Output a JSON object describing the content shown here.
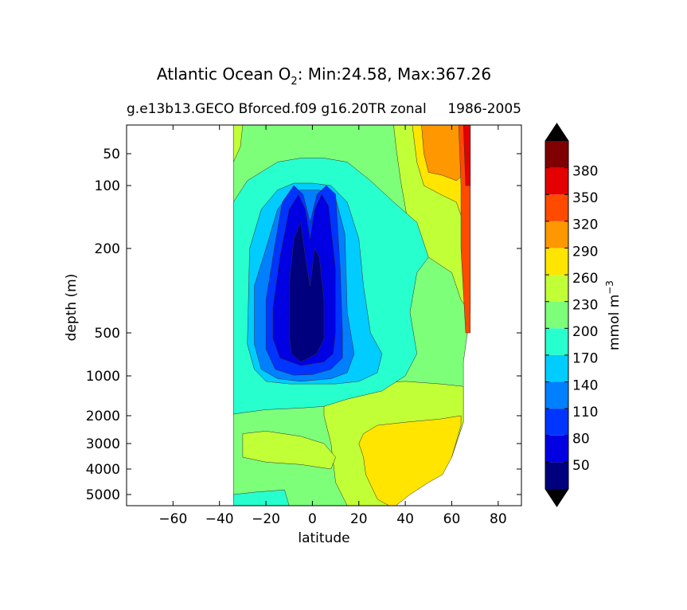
{
  "chart_data": {
    "type": "heatmap",
    "title_text": "Atlantic Ocean O",
    "title_subscript": "2",
    "title_rest": ": Min:24.58, Max:367.26",
    "subtitle_left": "g.e13b13.GECO Bforced.f09 g16.20TR zonal",
    "subtitle_right": "1986-2005",
    "xlabel": "latitude",
    "ylabel": "depth (m)",
    "xlim": [
      -80,
      90
    ],
    "xticks": [
      -60,
      -40,
      -20,
      0,
      20,
      40,
      60,
      80
    ],
    "yticks": [
      50,
      100,
      200,
      500,
      1000,
      2000,
      3000,
      4000,
      5000
    ],
    "yscale": "depth (stretched)",
    "colorbar": {
      "label": "mmol m",
      "label_sup": "−3",
      "levels": [
        20,
        50,
        80,
        110,
        140,
        170,
        200,
        230,
        260,
        290,
        320,
        350,
        380,
        410
      ],
      "tick_labels": [
        "50",
        "80",
        "110",
        "140",
        "170",
        "200",
        "230",
        "260",
        "290",
        "320",
        "350",
        "380"
      ],
      "colors": [
        "#00007f",
        "#0000e3",
        "#0034ff",
        "#0080ff",
        "#00ccff",
        "#28ffce",
        "#7dff7a",
        "#c1ff36",
        "#ffe500",
        "#ff9700",
        "#ff4a00",
        "#e40000",
        "#7f0000"
      ],
      "extend_low_color": "#000000",
      "extend_high_color": "#000000"
    },
    "contour_regions": [
      {
        "level_low": 200,
        "color": "#7dff7a",
        "extent": "domain -34 to 68 latitude, 20 to 5500 m (background)"
      },
      {
        "level_low": 230,
        "color": "#c1ff36",
        "extent": "western boundary strip near -34 latitude, 20-60 m"
      },
      {
        "level_low": 230,
        "color": "#c1ff36",
        "extent": "northern upper ocean 35-68 latitude, 20-400 m"
      },
      {
        "level_low": 260,
        "color": "#ffe500",
        "extent": "upper ocean 43-68 latitude, 20-150 m"
      },
      {
        "level_low": 290,
        "color": "#ff9700",
        "extent": "upper ocean 47-67 latitude, 20-80 m"
      },
      {
        "level_low": 320,
        "color": "#ff4a00",
        "extent": "high latitude strip 63-68, 20-500 m"
      },
      {
        "level_low": 350,
        "color": "#e40000",
        "extent": "high latitude strip 65-68, 20-100 m"
      },
      {
        "level_low": 230,
        "color": "#c1ff36",
        "extent": "north deep water 5-65 latitude, 1100-5500 m"
      },
      {
        "level_low": 260,
        "color": "#ffe500",
        "extent": "north deep water 22-65 latitude, 2200-5500 m"
      },
      {
        "level_low": 230,
        "color": "#c1ff36",
        "extent": "south deep tongue -30 to 10 latitude, 2500-4000 m"
      },
      {
        "level_low": 170,
        "color": "#28ffce",
        "extent": "tropical oxygen minimum envelope -34 to 50 latitude, 50-1800 m"
      },
      {
        "level_low": 140,
        "color": "#00ccff",
        "extent": "-27 to 30 latitude, 120-1200 m"
      },
      {
        "level_low": 110,
        "color": "#0080ff",
        "extent": "-25 to 15 latitude, 100-1100 m"
      },
      {
        "level_low": 80,
        "color": "#0034ff",
        "extent": "-20 to 13 latitude, 90-1000 m"
      },
      {
        "level_low": 50,
        "color": "#0000e3",
        "extent": "-17 to 10 latitude, 100-900 m"
      },
      {
        "level_low": 20,
        "color": "#00007f",
        "extent": "-10 to 5 latitude, 150-800 m"
      },
      {
        "level_low": 170,
        "color": "#28ffce",
        "extent": "bottom water -34 to -10 latitude, 4800-5500 m"
      }
    ]
  }
}
